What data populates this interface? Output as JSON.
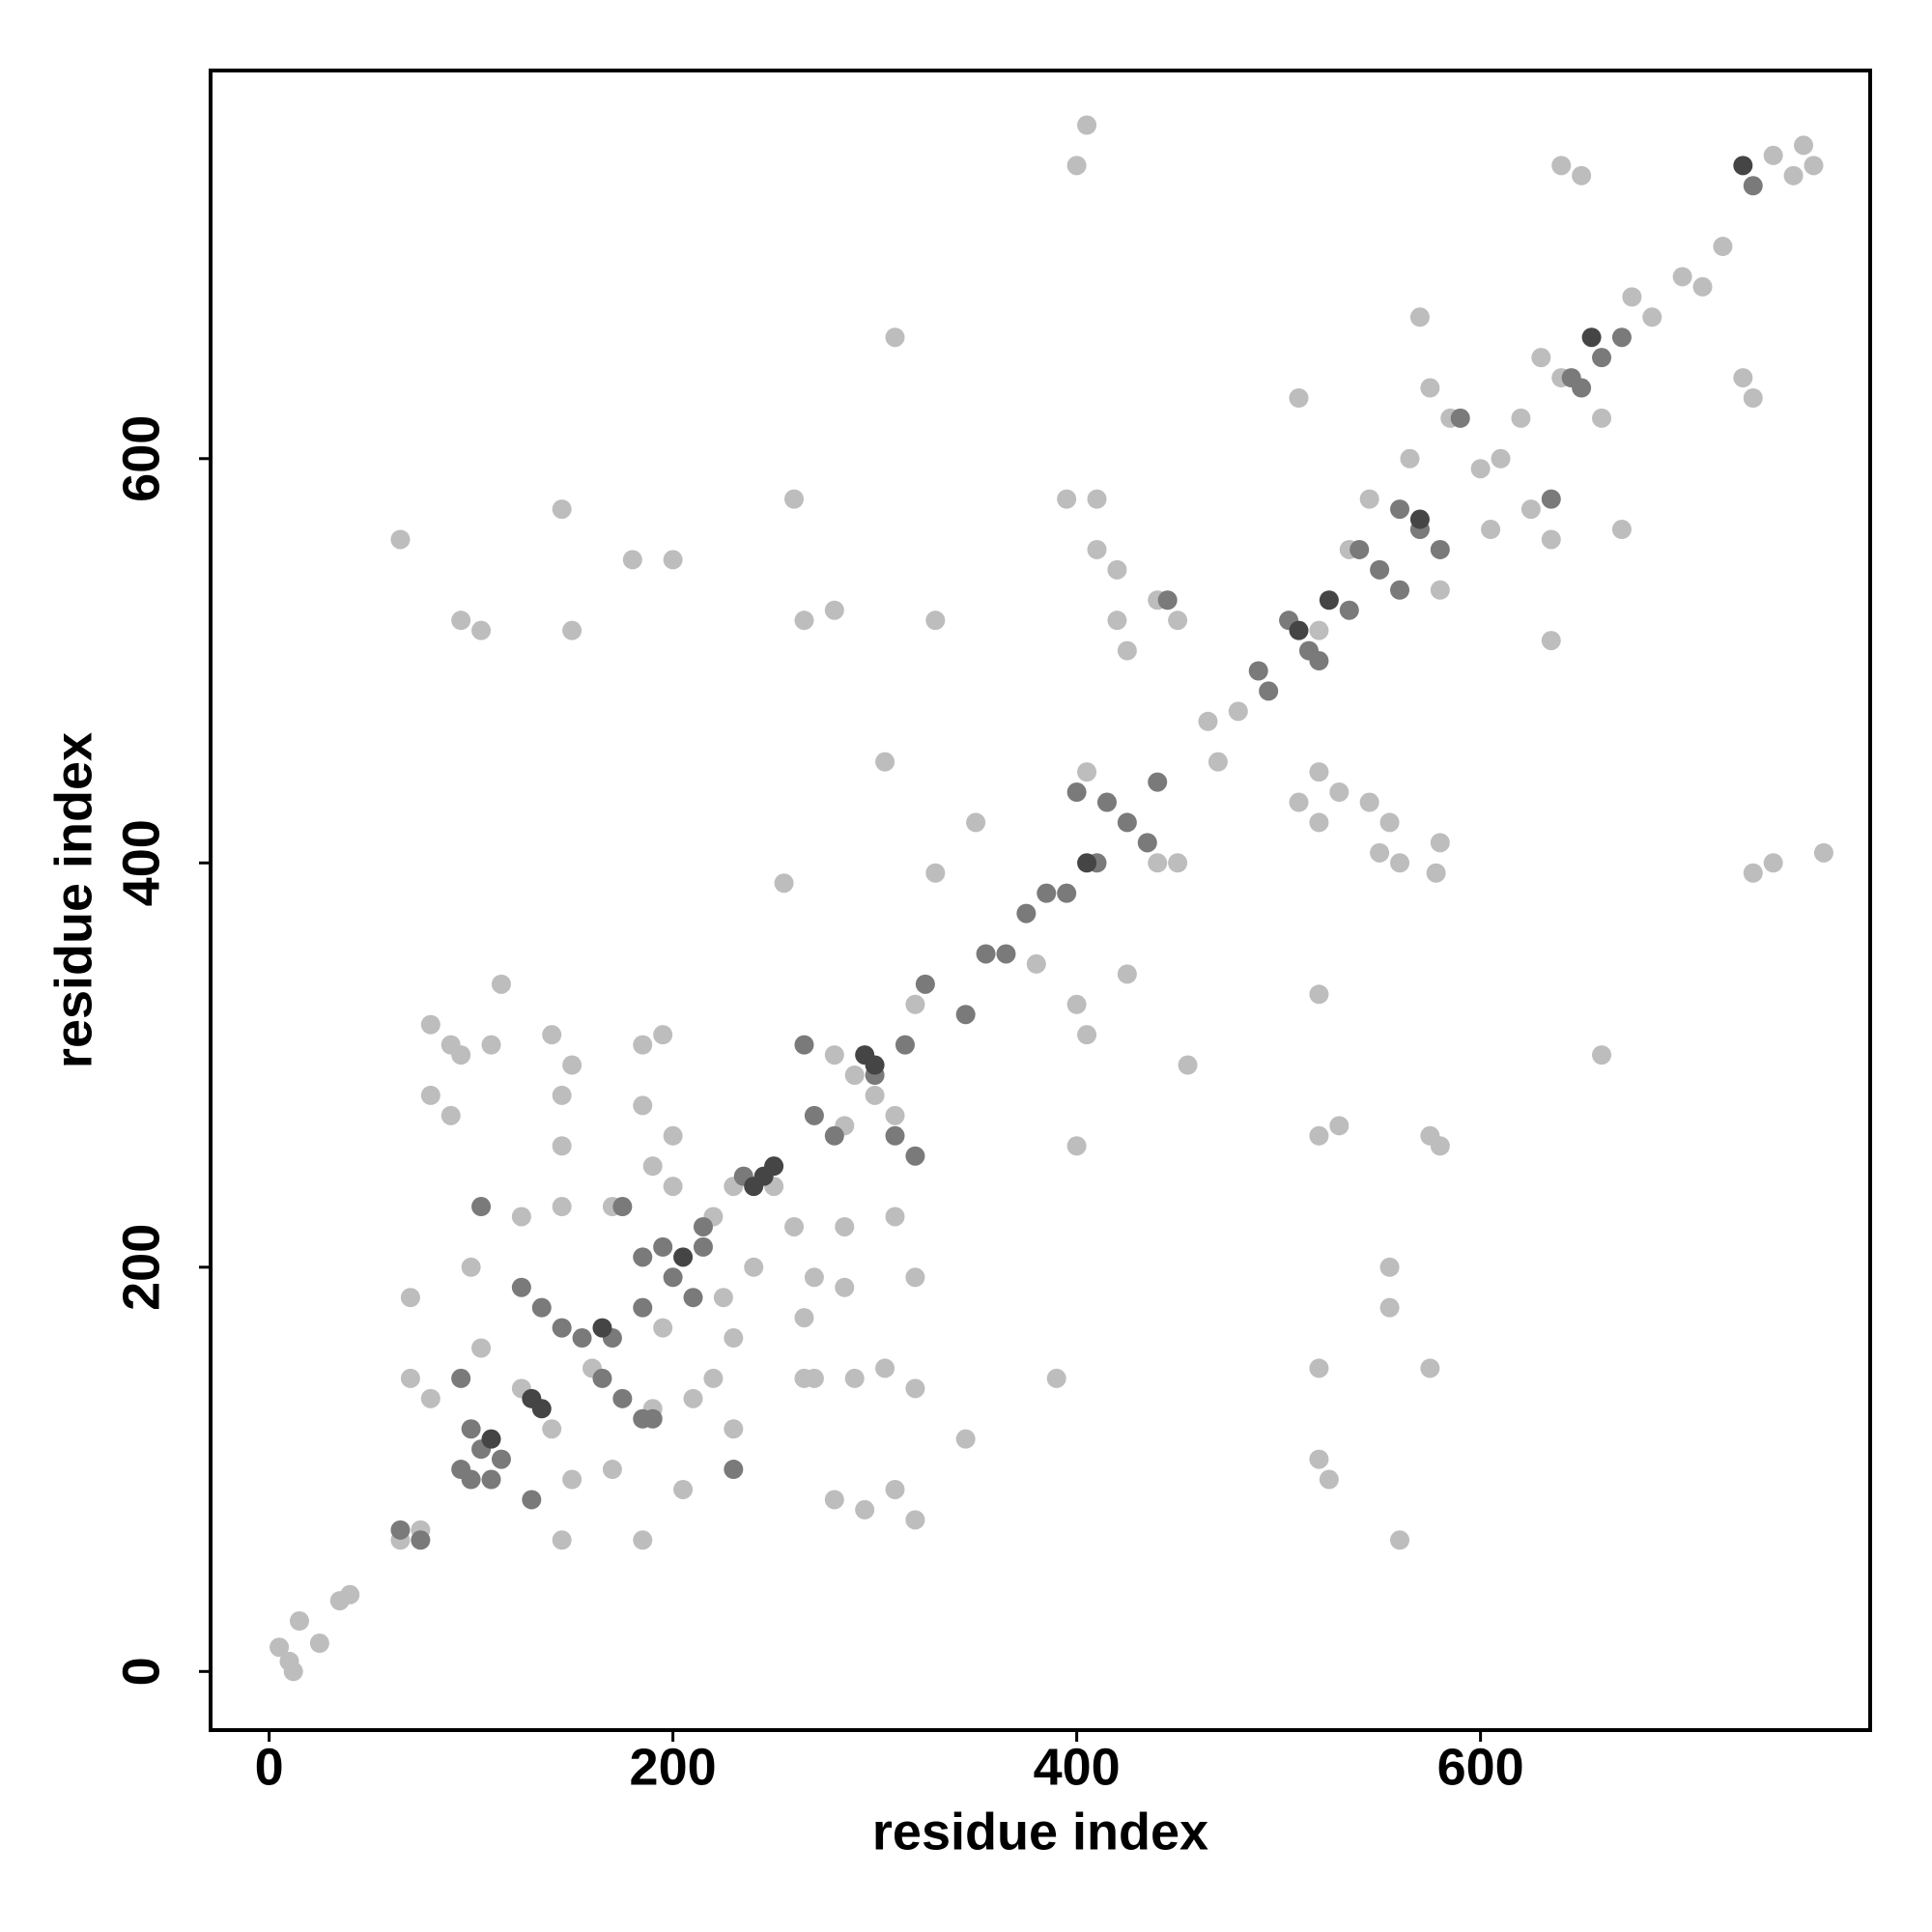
{
  "chart_data": {
    "type": "scatter",
    "x_label": "residue index",
    "y_label": "residue index",
    "xlim": [
      -29,
      793
    ],
    "ylim": [
      -29,
      792
    ],
    "xticks": [
      0,
      200,
      400,
      600
    ],
    "yticks": [
      0,
      200,
      400,
      600
    ],
    "series": [
      {
        "color": "#bdbdbd",
        "x": [
          5,
          10,
          12,
          15,
          25,
          35,
          40,
          65,
          75,
          80,
          90,
          95,
          80,
          90,
          95,
          105,
          150,
          145,
          65,
          180,
          200,
          115,
          110,
          140,
          150,
          145,
          145,
          125,
          145,
          170,
          100,
          70,
          70,
          80,
          105,
          125,
          140,
          150,
          145,
          170,
          185,
          185,
          195,
          185,
          200,
          190,
          200,
          220,
          230,
          250,
          260,
          270,
          265,
          240,
          225,
          230,
          220,
          230,
          210,
          195,
          160,
          145,
          280,
          290,
          300,
          310,
          285,
          285,
          285,
          290,
          270,
          280,
          295,
          310,
          320,
          305,
          320,
          320,
          310,
          305,
          310,
          255,
          260,
          265,
          280,
          330,
          400,
          405,
          410,
          420,
          395,
          410,
          405,
          400,
          405,
          400,
          390,
          345,
          350,
          330,
          380,
          440,
          450,
          440,
          450,
          425,
          420,
          425,
          455,
          465,
          480,
          470,
          510,
          520,
          535,
          545,
          520,
          530,
          545,
          510,
          520,
          555,
          560,
          550,
          580,
          578,
          520,
          520,
          530,
          575,
          580,
          555,
          555,
          520,
          575,
          520,
          525,
          560,
          575,
          565,
          580,
          570,
          585,
          600,
          610,
          620,
          630,
          640,
          605,
          625,
          635,
          635,
          640,
          650,
          660,
          670,
          660,
          675,
          685,
          700,
          710,
          720,
          730,
          735,
          745,
          755,
          765,
          760,
          735,
          745,
          770,
          320,
          190,
          205,
          265
        ],
        "values": [
          12,
          5,
          0,
          25,
          14,
          35,
          38,
          65,
          70,
          320,
          310,
          305,
          285,
          275,
          520,
          515,
          515,
          575,
          560,
          550,
          550,
          340,
          310,
          315,
          300,
          285,
          260,
          225,
          230,
          230,
          200,
          185,
          145,
          135,
          160,
          140,
          120,
          95,
          65,
          100,
          65,
          310,
          315,
          280,
          265,
          250,
          240,
          225,
          240,
          240,
          220,
          195,
          175,
          200,
          185,
          165,
          145,
          120,
          135,
          170,
          150,
          170,
          305,
          295,
          285,
          275,
          270,
          220,
          190,
          145,
          145,
          85,
          80,
          90,
          75,
          150,
          140,
          195,
          225,
          450,
          660,
          390,
          580,
          520,
          525,
          520,
          745,
          765,
          555,
          545,
          580,
          580,
          445,
          330,
          315,
          260,
          145,
          115,
          420,
          395,
          350,
          400,
          400,
          530,
          520,
          505,
          520,
          345,
          300,
          470,
          475,
          450,
          630,
          515,
          555,
          580,
          445,
          435,
          430,
          430,
          420,
          420,
          400,
          405,
          410,
          395,
          335,
          265,
          270,
          265,
          260,
          200,
          180,
          150,
          150,
          105,
          95,
          65,
          635,
          600,
          535,
          670,
          620,
          595,
          600,
          620,
          650,
          640,
          565,
          575,
          560,
          510,
          745,
          740,
          305,
          565,
          620,
          680,
          670,
          690,
          685,
          705,
          640,
          630,
          750,
          740,
          745,
          755,
          395,
          400,
          405,
          330,
          130,
          90,
          145
        ]
      },
      {
        "color": "#7a7a7a",
        "x": [
          65,
          75,
          95,
          100,
          105,
          100,
          115,
          110,
          95,
          105,
          125,
          135,
          145,
          155,
          165,
          175,
          185,
          190,
          170,
          175,
          185,
          195,
          200,
          210,
          215,
          235,
          265,
          270,
          280,
          300,
          310,
          320,
          315,
          325,
          345,
          355,
          365,
          375,
          385,
          395,
          410,
          400,
          415,
          425,
          435,
          440,
          445,
          490,
          495,
          505,
          515,
          520,
          535,
          540,
          550,
          560,
          560,
          570,
          580,
          590,
          635,
          645,
          650,
          660,
          670,
          735,
          130,
          185,
          230,
          215
        ],
        "values": [
          70,
          65,
          100,
          95,
          110,
          120,
          105,
          95,
          145,
          230,
          190,
          180,
          170,
          165,
          145,
          135,
          125,
          125,
          165,
          230,
          205,
          210,
          195,
          185,
          220,
          245,
          310,
          275,
          265,
          295,
          265,
          255,
          310,
          340,
          325,
          355,
          355,
          375,
          385,
          385,
          400,
          435,
          430,
          420,
          410,
          440,
          530,
          495,
          485,
          520,
          505,
          500,
          525,
          555,
          545,
          535,
          575,
          565,
          555,
          620,
          580,
          640,
          635,
          650,
          660,
          735,
          85,
          180,
          100,
          210
        ]
      },
      {
        "color": "#454545",
        "x": [
          130,
          135,
          165,
          245,
          250,
          240,
          295,
          300,
          405,
          525,
          570,
          655,
          730,
          510,
          110,
          205
        ],
        "values": [
          135,
          130,
          170,
          245,
          250,
          240,
          305,
          300,
          400,
          530,
          570,
          660,
          745,
          515,
          115,
          205
        ]
      }
    ]
  }
}
